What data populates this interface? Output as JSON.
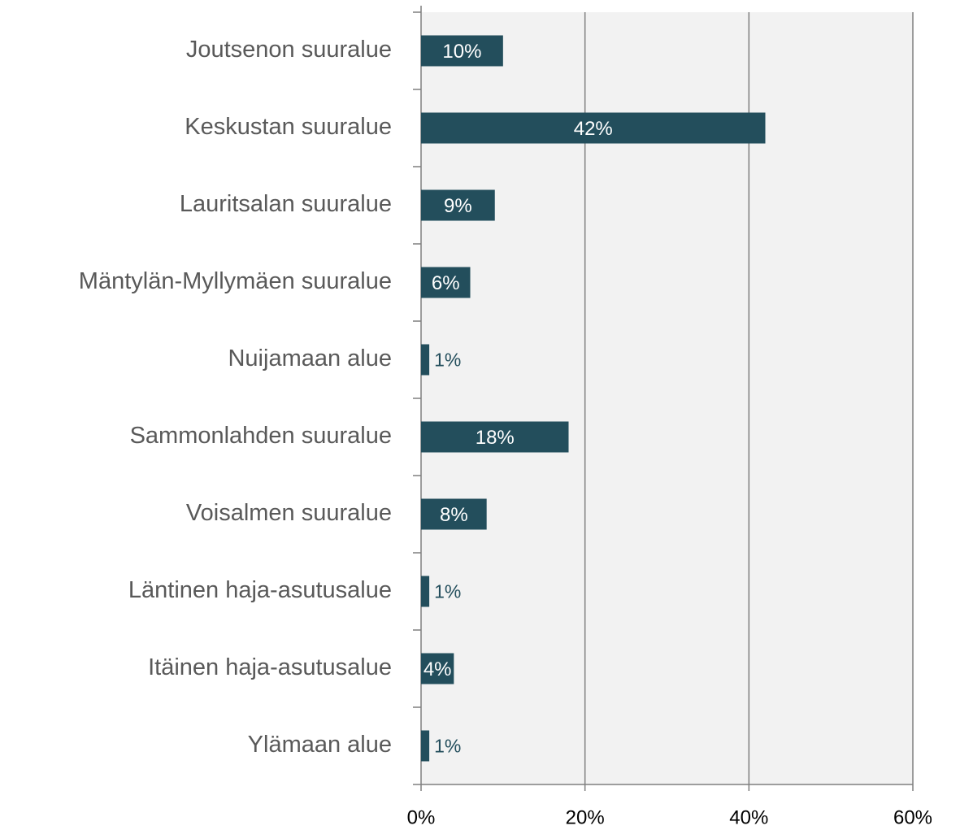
{
  "chart_data": {
    "type": "barh",
    "categories": [
      "Joutsenon suuralue",
      "Keskustan suuralue",
      "Lauritsalan suuralue",
      "Mäntylän-Myllymäen suuralue",
      "Nuijamaan alue",
      "Sammonlahden suuralue",
      "Voisalmen suuralue",
      "Läntinen haja-asutusalue",
      "Itäinen haja-asutusalue",
      "Ylämaan alue"
    ],
    "values": [
      10,
      42,
      9,
      6,
      1,
      18,
      8,
      1,
      4,
      1
    ],
    "value_labels": [
      "10%",
      "42%",
      "9%",
      "6%",
      "1%",
      "18%",
      "8%",
      "1%",
      "4%",
      "1%"
    ],
    "color": "#234e5c",
    "xlim": [
      0,
      60
    ],
    "xticks": [
      {
        "value": 0,
        "label": "0%"
      },
      {
        "value": 20,
        "label": "20%"
      },
      {
        "value": 40,
        "label": "40%"
      },
      {
        "value": 60,
        "label": "60%"
      }
    ],
    "grid": true
  }
}
